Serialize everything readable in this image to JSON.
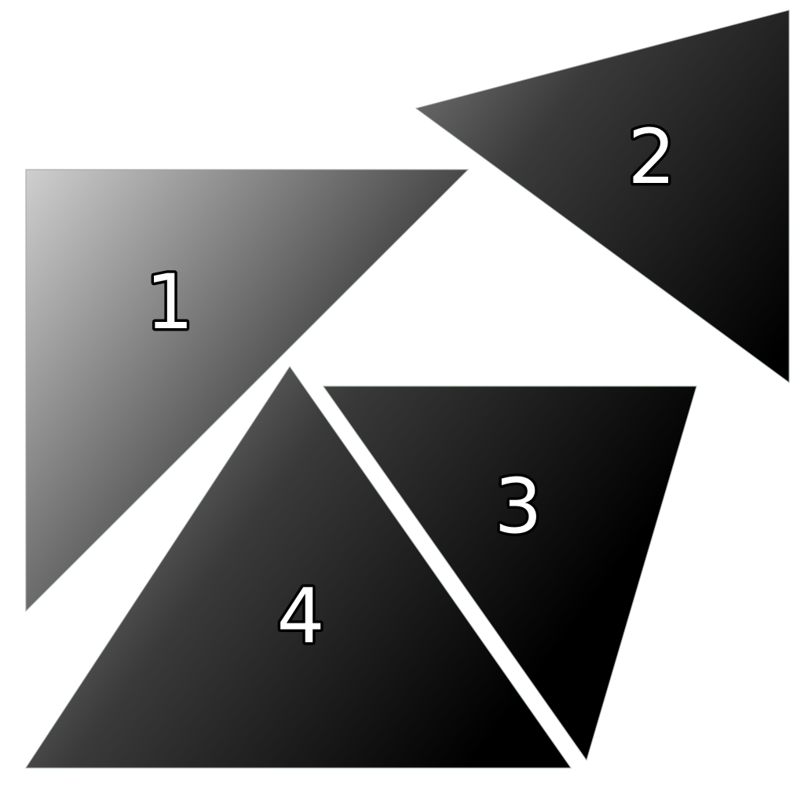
{
  "colors": {
    "background": "#ffffff",
    "gradient_light": "#d0d0d0",
    "gradient_dark": "#000000",
    "label_fill": "#ffffff",
    "label_outline": "#000000"
  },
  "pieces": [
    {
      "label": "1"
    },
    {
      "label": "2"
    },
    {
      "label": "3"
    },
    {
      "label": "4"
    }
  ]
}
